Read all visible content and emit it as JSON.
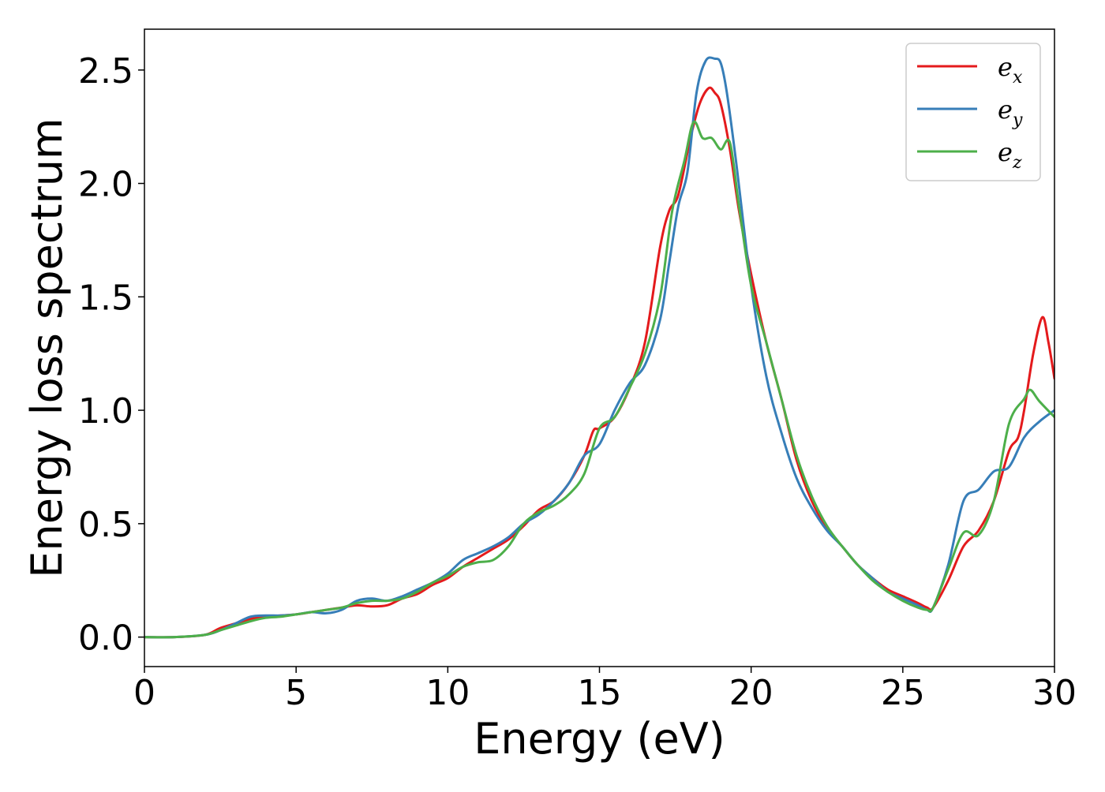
{
  "chart_data": {
    "type": "line",
    "title": "",
    "xlabel": "Energy (eV)",
    "ylabel": "Energy loss spectrum",
    "xlim": [
      0,
      30
    ],
    "ylim": [
      -0.13,
      2.68
    ],
    "xticks": [
      0,
      5,
      10,
      15,
      20,
      25,
      30
    ],
    "yticks": [
      0.0,
      0.5,
      1.0,
      1.5,
      2.0,
      2.5
    ],
    "xtick_labels": [
      "0",
      "5",
      "10",
      "15",
      "20",
      "25",
      "30"
    ],
    "ytick_labels": [
      "0.0",
      "0.5",
      "1.0",
      "1.5",
      "2.0",
      "2.5"
    ],
    "grid": false,
    "legend_position": "top-right",
    "series": [
      {
        "name": "e_x",
        "label_main": "e",
        "label_sub": "x",
        "color": "#e41a1c",
        "x": [
          0,
          1,
          2,
          2.5,
          3,
          3.5,
          4,
          4.5,
          5,
          5.5,
          6,
          6.5,
          7,
          7.5,
          8,
          8.5,
          9,
          9.5,
          10,
          10.5,
          11,
          11.5,
          12,
          12.5,
          13,
          13.5,
          14,
          14.5,
          14.8,
          15,
          15.5,
          16,
          16.5,
          17,
          17.3,
          17.6,
          18,
          18.3,
          18.6,
          18.8,
          19,
          19.3,
          19.6,
          20,
          20.5,
          21,
          21.5,
          22,
          22.5,
          23,
          23.5,
          24,
          24.5,
          25,
          25.5,
          25.8,
          26,
          26.5,
          27,
          27.5,
          28,
          28.5,
          28.8,
          29,
          29.3,
          29.6,
          29.8,
          30
        ],
        "y": [
          0.0,
          0.0,
          0.01,
          0.04,
          0.06,
          0.08,
          0.09,
          0.095,
          0.1,
          0.11,
          0.12,
          0.13,
          0.14,
          0.135,
          0.14,
          0.17,
          0.19,
          0.23,
          0.26,
          0.31,
          0.35,
          0.39,
          0.43,
          0.49,
          0.56,
          0.6,
          0.68,
          0.8,
          0.91,
          0.92,
          0.97,
          1.1,
          1.3,
          1.72,
          1.88,
          1.95,
          2.2,
          2.35,
          2.42,
          2.4,
          2.35,
          2.15,
          1.88,
          1.6,
          1.3,
          1.05,
          0.78,
          0.6,
          0.48,
          0.4,
          0.32,
          0.26,
          0.21,
          0.18,
          0.15,
          0.13,
          0.13,
          0.25,
          0.4,
          0.47,
          0.6,
          0.82,
          0.88,
          1.0,
          1.25,
          1.41,
          1.3,
          1.14
        ]
      },
      {
        "name": "e_y",
        "label_main": "e",
        "label_sub": "y",
        "color": "#377eb8",
        "x": [
          0,
          1,
          2,
          2.5,
          3,
          3.5,
          4,
          4.5,
          5,
          5.5,
          6,
          6.5,
          7,
          7.5,
          8,
          8.5,
          9,
          9.5,
          10,
          10.5,
          11,
          11.5,
          12,
          12.5,
          13,
          13.5,
          14,
          14.5,
          15,
          15.5,
          16,
          16.5,
          17,
          17.3,
          17.6,
          17.9,
          18.2,
          18.5,
          18.8,
          19,
          19.2,
          19.5,
          20,
          20.5,
          21,
          21.5,
          22,
          22.5,
          23,
          23.5,
          24,
          24.5,
          25,
          25.5,
          25.8,
          26,
          26.5,
          27,
          27.5,
          28,
          28.5,
          29,
          29.5,
          30
        ],
        "y": [
          0.0,
          0.0,
          0.01,
          0.03,
          0.06,
          0.09,
          0.095,
          0.095,
          0.1,
          0.11,
          0.105,
          0.12,
          0.16,
          0.17,
          0.16,
          0.18,
          0.21,
          0.24,
          0.28,
          0.34,
          0.37,
          0.4,
          0.44,
          0.5,
          0.54,
          0.6,
          0.68,
          0.8,
          0.85,
          1.0,
          1.12,
          1.2,
          1.4,
          1.65,
          1.9,
          2.05,
          2.4,
          2.54,
          2.55,
          2.53,
          2.4,
          2.1,
          1.55,
          1.15,
          0.9,
          0.7,
          0.57,
          0.47,
          0.4,
          0.32,
          0.26,
          0.2,
          0.17,
          0.14,
          0.12,
          0.13,
          0.32,
          0.6,
          0.65,
          0.73,
          0.75,
          0.88,
          0.95,
          1.0
        ]
      },
      {
        "name": "e_z",
        "label_main": "e",
        "label_sub": "z",
        "color": "#4daf4a",
        "x": [
          0,
          1,
          2,
          2.5,
          3,
          3.5,
          4,
          4.5,
          5,
          5.5,
          6,
          6.5,
          7,
          7.5,
          8,
          8.5,
          9,
          9.5,
          10,
          10.5,
          11,
          11.5,
          12,
          12.5,
          13,
          13.5,
          14,
          14.5,
          15,
          15.5,
          16,
          16.5,
          17,
          17.4,
          17.8,
          18.1,
          18.4,
          18.7,
          19,
          19.3,
          19.6,
          20,
          20.5,
          21,
          21.5,
          22,
          22.5,
          23,
          23.5,
          24,
          24.5,
          25,
          25.5,
          25.8,
          26,
          26.5,
          27,
          27.5,
          28,
          28.5,
          29,
          29.2,
          29.5,
          30
        ],
        "y": [
          0.0,
          0.0,
          0.01,
          0.03,
          0.05,
          0.07,
          0.085,
          0.09,
          0.1,
          0.11,
          0.12,
          0.13,
          0.15,
          0.16,
          0.16,
          0.17,
          0.2,
          0.24,
          0.27,
          0.31,
          0.33,
          0.34,
          0.4,
          0.5,
          0.55,
          0.58,
          0.63,
          0.72,
          0.92,
          0.97,
          1.1,
          1.25,
          1.5,
          1.88,
          2.1,
          2.27,
          2.2,
          2.2,
          2.15,
          2.18,
          1.9,
          1.55,
          1.3,
          1.05,
          0.8,
          0.62,
          0.49,
          0.4,
          0.32,
          0.25,
          0.2,
          0.16,
          0.13,
          0.12,
          0.13,
          0.3,
          0.46,
          0.45,
          0.6,
          0.94,
          1.05,
          1.09,
          1.04,
          0.97
        ]
      }
    ]
  }
}
